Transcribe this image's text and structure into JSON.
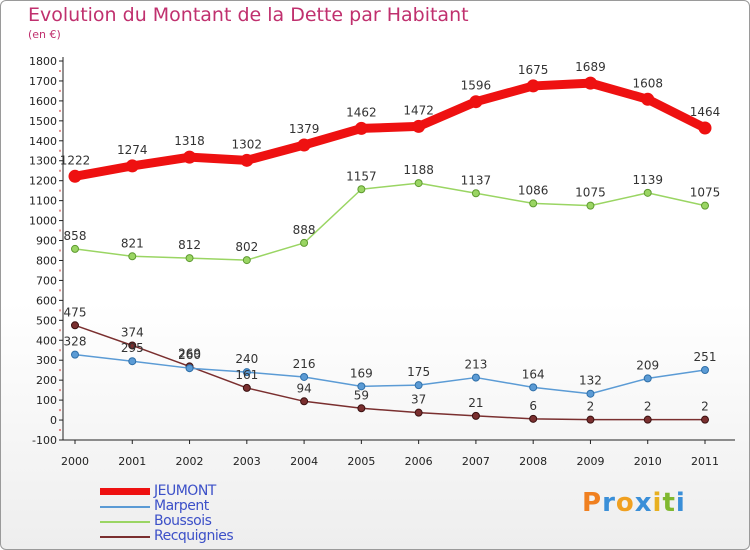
{
  "title": "Evolution du Montant de la Dette par Habitant",
  "subtitle": "(en €)",
  "logo": {
    "text": "Proxiti",
    "colors": [
      "#f08020",
      "#3a8fd8",
      "#f0a020",
      "#3a8fd8",
      "#e8b020",
      "#80b830",
      "#3a8fd8"
    ]
  },
  "chart_data": {
    "type": "line",
    "title": "Evolution du Montant de la Dette par Habitant",
    "ylabel": "(en €)",
    "xlabel": "",
    "x": [
      "2000",
      "2001",
      "2002",
      "2003",
      "2004",
      "2005",
      "2006",
      "2007",
      "2008",
      "2009",
      "2010",
      "2011"
    ],
    "ylim": [
      -100,
      1800
    ],
    "yticks": [
      -100,
      0,
      100,
      200,
      300,
      400,
      500,
      600,
      700,
      800,
      900,
      1000,
      1100,
      1200,
      1300,
      1400,
      1500,
      1600,
      1700,
      1800
    ],
    "grid": false,
    "legend_position": "bottom-left",
    "series": [
      {
        "name": "JEUMONT",
        "color": "#ee1111",
        "values": [
          1222,
          1274,
          1318,
          1302,
          1379,
          1462,
          1472,
          1596,
          1675,
          1689,
          1608,
          1464
        ]
      },
      {
        "name": "Marpent",
        "color": "#5b9bd5",
        "values": [
          328,
          295,
          260,
          240,
          216,
          169,
          175,
          213,
          164,
          132,
          209,
          251
        ]
      },
      {
        "name": "Boussois",
        "color": "#9ad563",
        "values": [
          858,
          821,
          812,
          802,
          888,
          1157,
          1188,
          1137,
          1086,
          1075,
          1139,
          1075
        ]
      },
      {
        "name": "Recquignies",
        "color": "#7a2f2f",
        "values": [
          475,
          374,
          269,
          161,
          94,
          59,
          37,
          21,
          6,
          2,
          2,
          2
        ]
      }
    ]
  }
}
